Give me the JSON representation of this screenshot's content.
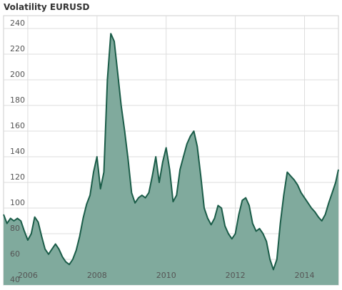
{
  "header": {
    "title": "Volatility EURUSD"
  },
  "chart_data": {
    "type": "area",
    "title": "Volatility EURUSD",
    "xlabel": "",
    "ylabel": "",
    "xlim": [
      2005.3,
      2014.98
    ],
    "ylim": [
      40,
      250
    ],
    "grid": true,
    "x_ticks": [
      "2006",
      "2008",
      "2010",
      "2012",
      "2014"
    ],
    "y_ticks": [
      "40",
      "60",
      "80",
      "100",
      "120",
      "140",
      "160",
      "180",
      "200",
      "220",
      "240"
    ],
    "colors": {
      "fill": "#80aa9d",
      "line": "#1a5c48",
      "grid": "#dddddd"
    },
    "series": [
      {
        "x": [
          2005.3,
          2005.4,
          2005.5,
          2005.6,
          2005.7,
          2005.8,
          2005.9,
          2006.0,
          2006.1,
          2006.2,
          2006.3,
          2006.4,
          2006.5,
          2006.6,
          2006.7,
          2006.8,
          2006.9,
          2007.0,
          2007.1,
          2007.2,
          2007.3,
          2007.4,
          2007.5,
          2007.6,
          2007.7,
          2007.8,
          2007.9,
          2008.0,
          2008.1,
          2008.2,
          2008.3,
          2008.4,
          2008.5,
          2008.6,
          2008.7,
          2008.8,
          2008.9,
          2009.0,
          2009.1,
          2009.2,
          2009.3,
          2009.4,
          2009.5,
          2009.6,
          2009.7,
          2009.8,
          2009.9,
          2010.0,
          2010.1,
          2010.2,
          2010.3,
          2010.4,
          2010.5,
          2010.6,
          2010.7,
          2010.8,
          2010.9,
          2011.0,
          2011.1,
          2011.2,
          2011.3,
          2011.4,
          2011.5,
          2011.6,
          2011.7,
          2011.8,
          2011.9,
          2012.0,
          2012.1,
          2012.2,
          2012.3,
          2012.4,
          2012.5,
          2012.6,
          2012.7,
          2012.8,
          2012.9,
          2013.0,
          2013.1,
          2013.2,
          2013.3,
          2013.4,
          2013.5,
          2013.6,
          2013.7,
          2013.8,
          2013.9,
          2014.0,
          2014.1,
          2014.2,
          2014.3,
          2014.4,
          2014.5,
          2014.6,
          2014.7,
          2014.8,
          2014.9,
          2014.98
        ],
        "values": [
          95,
          88,
          92,
          90,
          92,
          90,
          82,
          75,
          80,
          93,
          89,
          78,
          68,
          64,
          68,
          72,
          68,
          62,
          58,
          56,
          60,
          67,
          78,
          92,
          103,
          110,
          128,
          140,
          115,
          128,
          200,
          236,
          230,
          205,
          180,
          160,
          138,
          112,
          104,
          108,
          110,
          108,
          112,
          125,
          140,
          120,
          136,
          147,
          130,
          105,
          110,
          130,
          140,
          150,
          156,
          160,
          148,
          125,
          100,
          92,
          87,
          92,
          102,
          100,
          86,
          80,
          76,
          80,
          95,
          106,
          108,
          102,
          88,
          82,
          84,
          80,
          74,
          60,
          52,
          60,
          88,
          110,
          128,
          125,
          122,
          118,
          112,
          108,
          104,
          100,
          97,
          93,
          90,
          95,
          104,
          112,
          120,
          130
        ]
      }
    ]
  }
}
